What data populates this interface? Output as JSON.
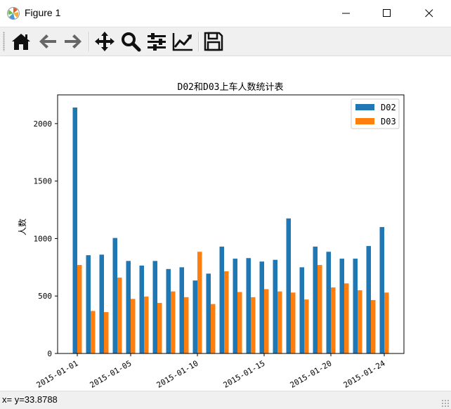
{
  "window": {
    "title": "Figure 1",
    "icon": "matplotlib-icon"
  },
  "window_controls": [
    "minimize-icon",
    "maximize-icon",
    "close-icon"
  ],
  "toolbar": {
    "buttons": [
      {
        "name": "home-button",
        "icon": "home-icon"
      },
      {
        "name": "back-button",
        "icon": "arrow-left-icon"
      },
      {
        "name": "forward-button",
        "icon": "arrow-right-icon"
      },
      {
        "name": "pan-button",
        "icon": "move-icon"
      },
      {
        "name": "zoom-button",
        "icon": "magnifier-icon"
      },
      {
        "name": "subplots-button",
        "icon": "sliders-icon"
      },
      {
        "name": "edit-axes-button",
        "icon": "line-chart-icon"
      },
      {
        "name": "save-button",
        "icon": "floppy-disk-icon"
      }
    ]
  },
  "status": {
    "text": "x= y=33.8788"
  },
  "colors": {
    "series1": "#1f77b4",
    "series2": "#ff7f0e"
  },
  "chart_data": {
    "type": "bar",
    "title": "D02和D03上车人数统计表",
    "xlabel": "",
    "ylabel": "人数",
    "x": [
      "2015-01-01",
      "2015-01-02",
      "2015-01-03",
      "2015-01-04",
      "2015-01-05",
      "2015-01-06",
      "2015-01-07",
      "2015-01-08",
      "2015-01-09",
      "2015-01-10",
      "2015-01-11",
      "2015-01-12",
      "2015-01-13",
      "2015-01-14",
      "2015-01-15",
      "2015-01-16",
      "2015-01-17",
      "2015-01-18",
      "2015-01-19",
      "2015-01-20",
      "2015-01-21",
      "2015-01-22",
      "2015-01-23",
      "2015-01-24"
    ],
    "xticks": [
      "2015-01-01",
      "2015-01-05",
      "2015-01-10",
      "2015-01-15",
      "2015-01-20",
      "2015-01-24"
    ],
    "series": [
      {
        "name": "D02",
        "values": [
          2140,
          855,
          860,
          1005,
          805,
          765,
          805,
          735,
          750,
          635,
          695,
          930,
          825,
          830,
          800,
          815,
          1175,
          750,
          930,
          885,
          825,
          825,
          935,
          1100
        ]
      },
      {
        "name": "D03",
        "values": [
          770,
          370,
          360,
          660,
          475,
          495,
          440,
          540,
          490,
          885,
          430,
          715,
          535,
          490,
          560,
          540,
          530,
          470,
          770,
          575,
          610,
          550,
          465,
          530
        ]
      }
    ],
    "ylim": [
      0,
      2250
    ],
    "yticks": [
      0,
      500,
      1000,
      1500,
      2000
    ],
    "legend": "top-right",
    "grid": false
  }
}
